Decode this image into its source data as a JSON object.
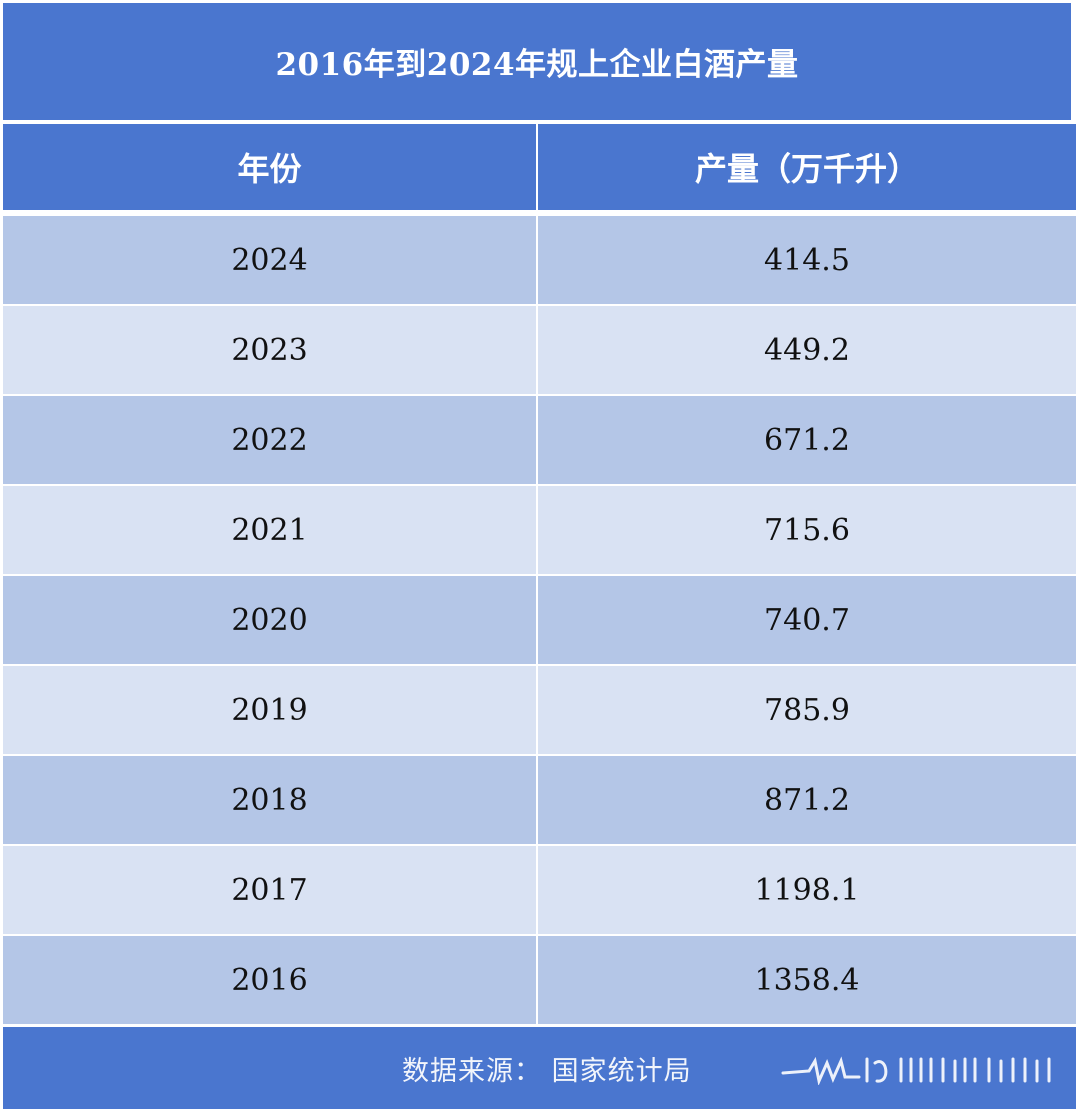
{
  "title": "2016年到2024年规上企业白酒产量",
  "headers": {
    "year": "年份",
    "value": "产量（万千升）"
  },
  "rows": [
    {
      "year": "2024",
      "value": "414.5"
    },
    {
      "year": "2023",
      "value": "449.2"
    },
    {
      "year": "2022",
      "value": "671.2"
    },
    {
      "year": "2021",
      "value": "715.6"
    },
    {
      "year": "2020",
      "value": "740.7"
    },
    {
      "year": "2019",
      "value": "785.9"
    },
    {
      "year": "2018",
      "value": "871.2"
    },
    {
      "year": "2017",
      "value": "1198.1"
    },
    {
      "year": "2016",
      "value": "1358.4"
    }
  ],
  "footer": {
    "source": "数据来源：  国家统计局"
  },
  "colors": {
    "header_blue": "#4a76cf",
    "row_dark": "#b4c6e7",
    "row_light": "#d9e2f3"
  },
  "chart_data": {
    "type": "table",
    "title": "2016年到2024年规上企业白酒产量",
    "columns": [
      "年份",
      "产量（万千升）"
    ],
    "categories": [
      "2024",
      "2023",
      "2022",
      "2021",
      "2020",
      "2019",
      "2018",
      "2017",
      "2016"
    ],
    "values": [
      414.5,
      449.2,
      671.2,
      715.6,
      740.7,
      785.9,
      871.2,
      1198.1,
      1358.4
    ]
  }
}
